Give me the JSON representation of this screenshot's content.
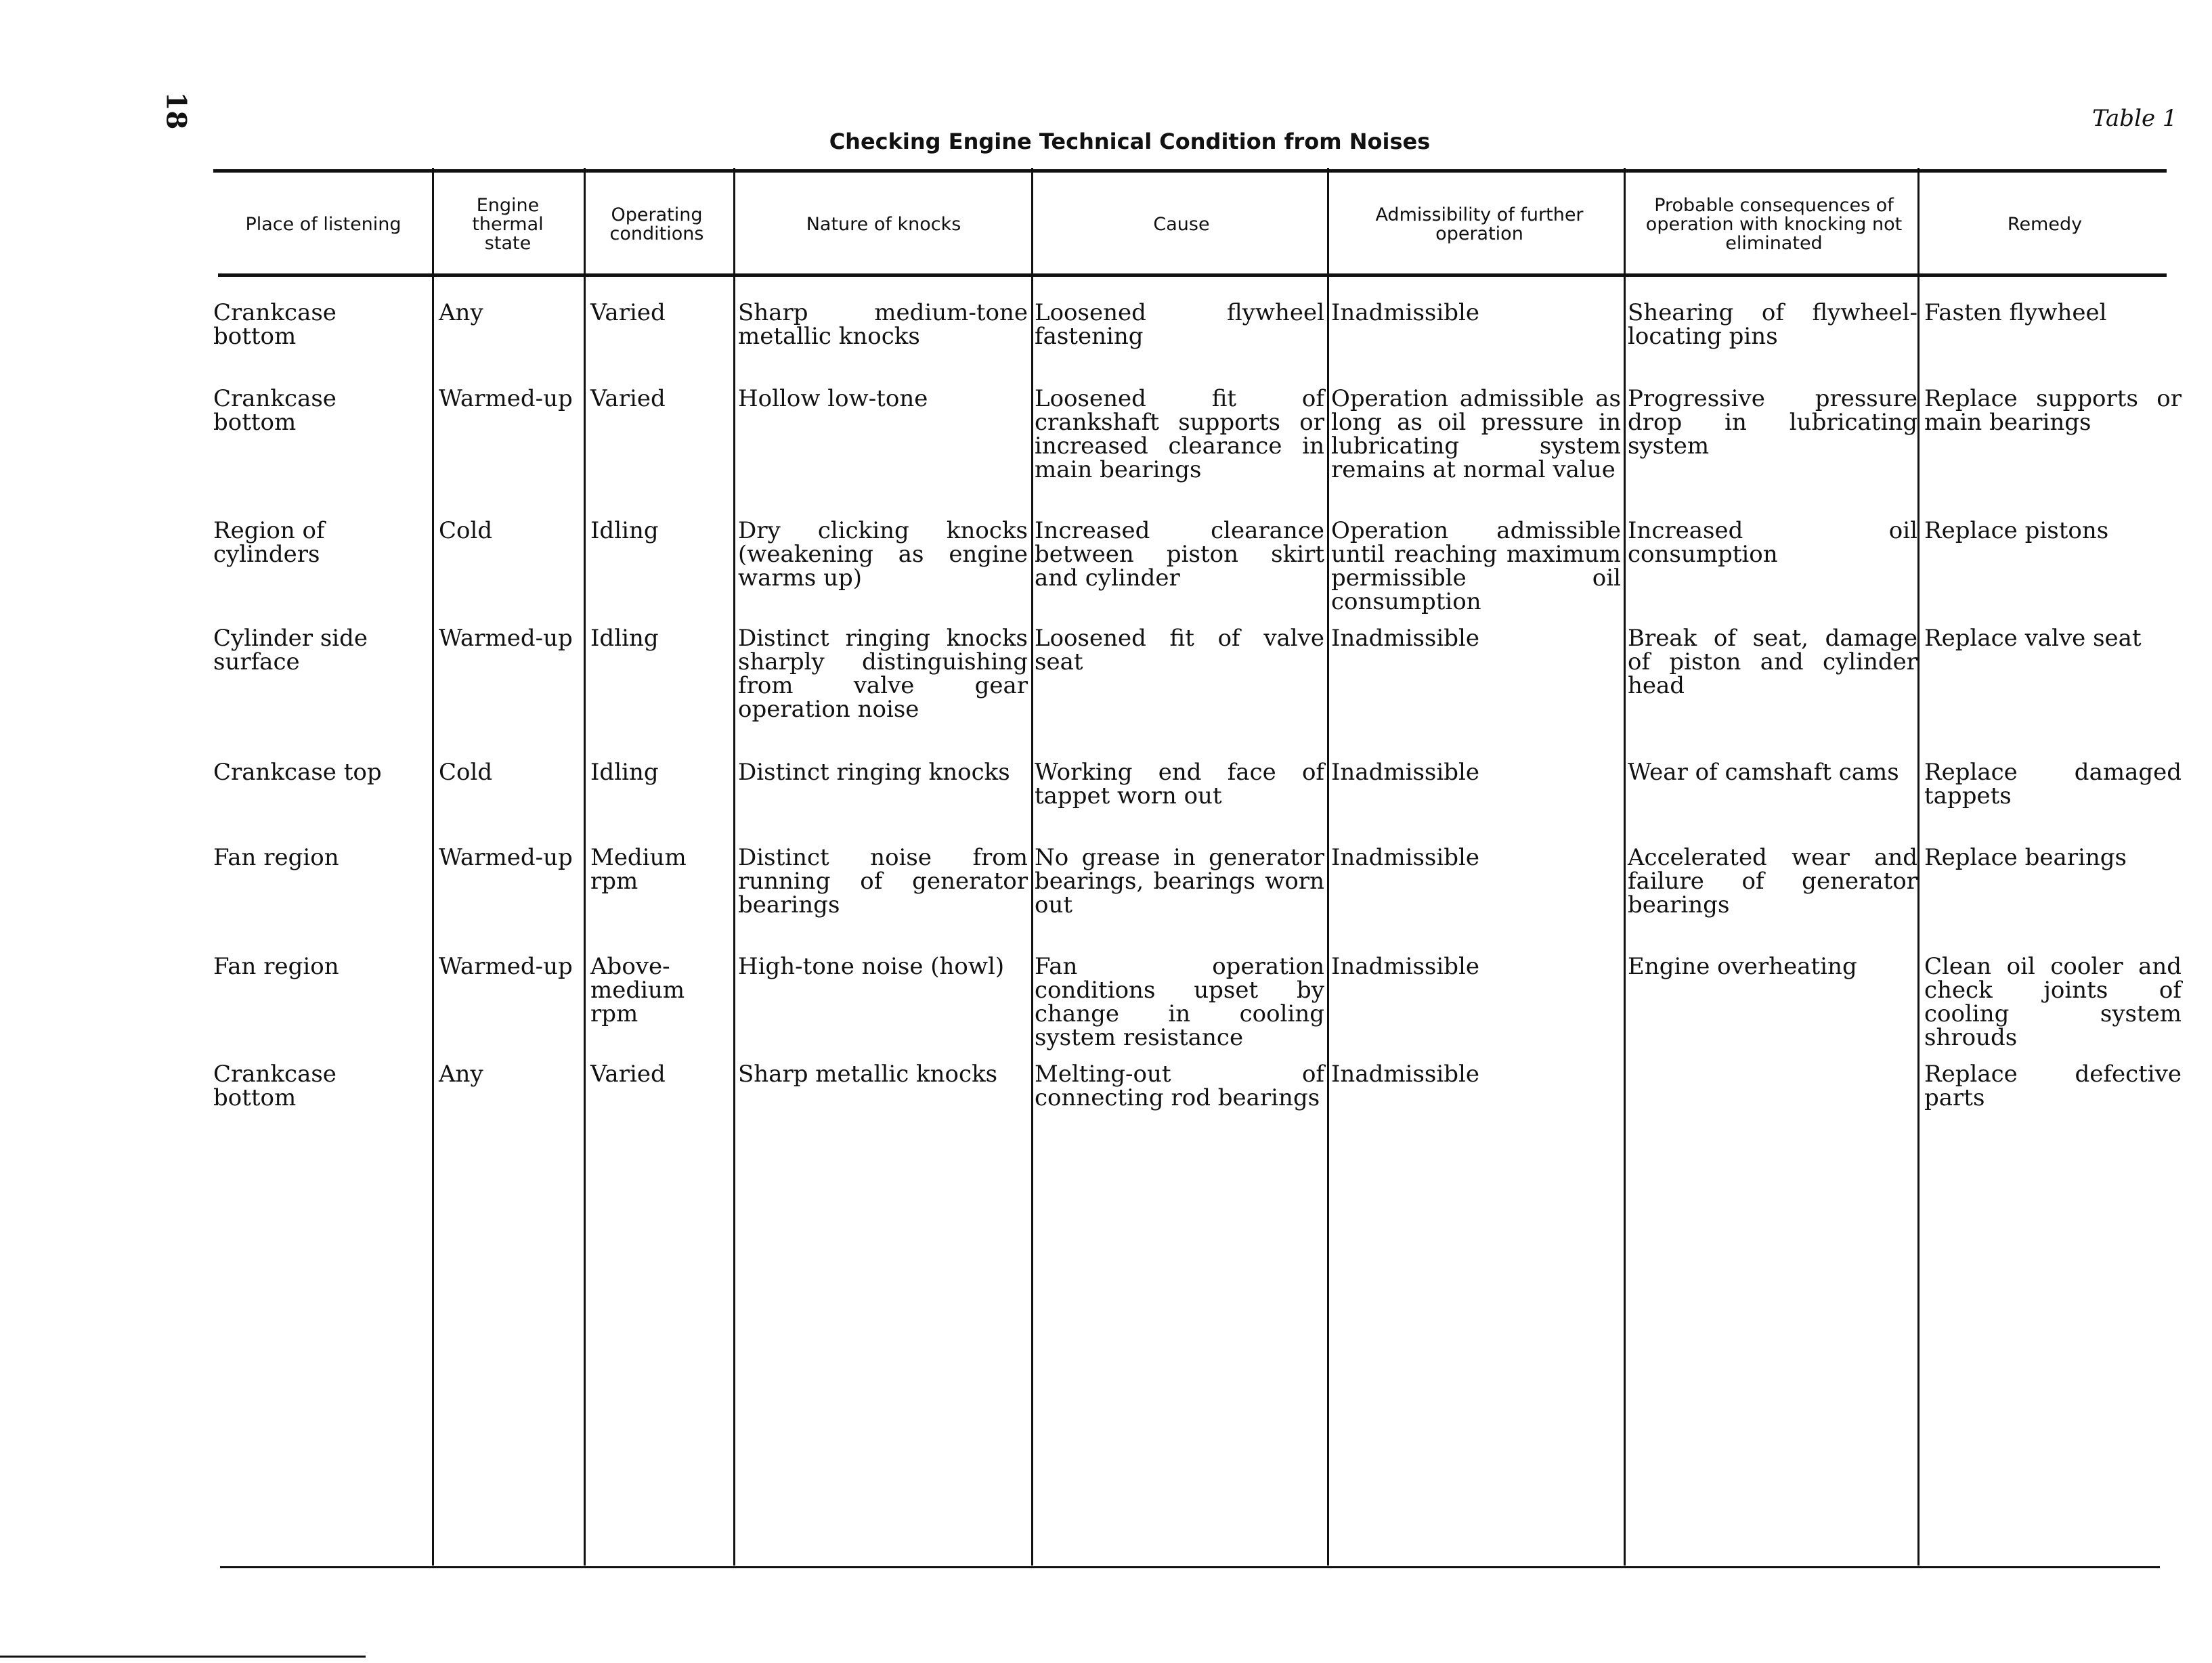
{
  "page_number": "18",
  "table_label": "Table 1",
  "title": "Checking Engine Technical Condition from Noises",
  "headers": [
    "Place of listening",
    "Engine thermal state",
    "Operating conditions",
    "Nature of knocks",
    "Cause",
    "Admissibility of further operation",
    "Probable consequences of operation with knocking not eliminated",
    "Remedy"
  ],
  "rows": [
    [
      "Crankcase bottom",
      "Any",
      "Varied",
      "Sharp medium-tone metallic knocks",
      "Loosened flywheel fastening",
      "Inadmissible",
      "Shearing of flywheel-locating pins",
      "Fasten flywheel"
    ],
    [
      "Crankcase bottom",
      "Warmed-up",
      "Varied",
      "Hollow low-tone",
      "Loosened fit of crankshaft supports or increased clearance in main bearings",
      "Operation admissible as long as oil pressure in lubricating system remains at normal value",
      "Progressive pressure drop in lubricating system",
      "Replace supports or main bearings"
    ],
    [
      "Region of cylinders",
      "Cold",
      "Idling",
      "Dry clicking knocks (weakening as engine warms up)",
      "Increased clearance between piston skirt and cylinder",
      "Operation admissible until reaching maximum permissible oil consumption",
      "Increased oil consumption",
      "Replace pistons"
    ],
    [
      "Cylinder side surface",
      "Warmed-up",
      "Idling",
      "Distinct ringing knocks sharply distinguishing from valve gear operation noise",
      "Loosened fit of valve seat",
      "Inadmissible",
      "Break of seat, damage of piston and cylinder head",
      "Replace valve seat"
    ],
    [
      "Crankcase top",
      "Cold",
      "Idling",
      "Distinct ringing knocks",
      "Working end face of tappet worn out",
      "Inadmissible",
      "Wear of camshaft cams",
      "Replace damaged tappets"
    ],
    [
      "Fan region",
      "Warmed-up",
      "Medium rpm",
      "Distinct noise from running of generator bearings",
      "No grease in generator bearings, bearings worn out",
      "Inadmissible",
      "Accelerated wear and failure of generator bearings",
      "Replace bearings"
    ],
    [
      "Fan region",
      "Warmed-up",
      "Above-medium rpm",
      "High-tone noise (howl)",
      "Fan operation conditions upset by change in cooling system resistance",
      "Inadmissible",
      "Engine overheating",
      "Clean oil cooler and check joints of cooling system shrouds"
    ],
    [
      "Crankcase bottom",
      "Any",
      "Varied",
      "Sharp metallic knocks",
      "Melting-out of connecting rod bearings",
      "Inadmissible",
      "",
      "Replace defective parts"
    ]
  ]
}
